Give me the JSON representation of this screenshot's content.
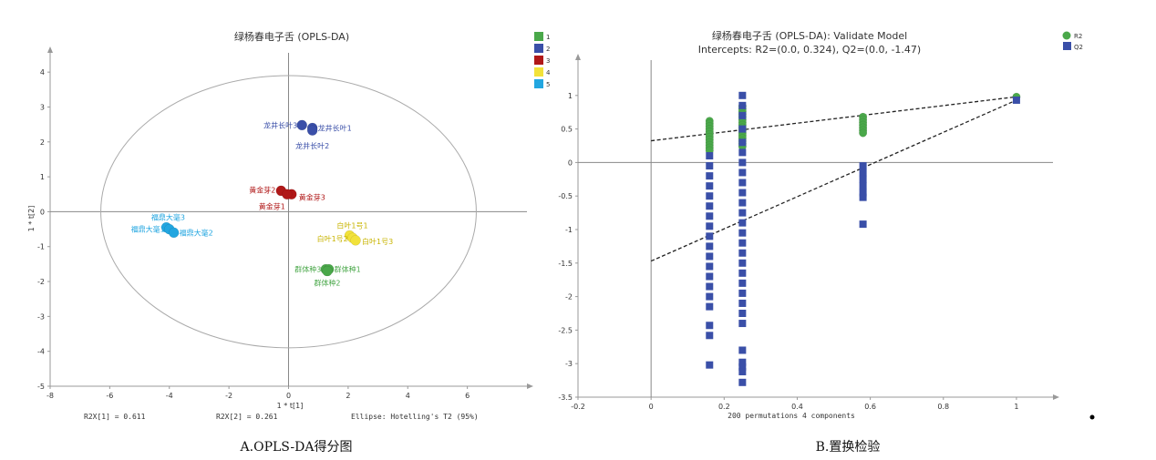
{
  "chart_data": [
    {
      "type": "scatter",
      "title": "绿杨春电子舌 (OPLS-DA)",
      "xlabel": "1 * t[1]",
      "ylabel": "1 * t[2]",
      "xlim": [
        -8,
        8
      ],
      "ylim": [
        -5,
        4.5
      ],
      "xticks": [
        -8,
        -6,
        -4,
        -2,
        0,
        2,
        4,
        6
      ],
      "yticks": [
        -5,
        -4,
        -3,
        -2,
        -1,
        0,
        1,
        2,
        3,
        4
      ],
      "legend": {
        "position": "top-right",
        "entries": [
          "1",
          "2",
          "3",
          "4",
          "5"
        ]
      },
      "colors": {
        "1": "#4aa84a",
        "2": "#3a4fa8",
        "3": "#b01818",
        "4": "#f2e23a",
        "5": "#22a6e0"
      },
      "series": [
        {
          "group": "1",
          "points": [
            {
              "label": "群体种3",
              "x": 1.25,
              "y": -1.65
            },
            {
              "label": "群体种1",
              "x": 1.35,
              "y": -1.65
            },
            {
              "label": "群体种2",
              "x": 1.3,
              "y": -1.7
            }
          ]
        },
        {
          "group": "2",
          "points": [
            {
              "label": "龙井长叶3",
              "x": 0.45,
              "y": 2.48
            },
            {
              "label": "龙井长叶1",
              "x": 0.8,
              "y": 2.4
            },
            {
              "label": "龙井长叶2",
              "x": 0.8,
              "y": 2.33
            }
          ]
        },
        {
          "group": "3",
          "points": [
            {
              "label": "黄金芽2",
              "x": -0.25,
              "y": 0.6
            },
            {
              "label": "黄金芽3",
              "x": 0.1,
              "y": 0.5
            },
            {
              "label": "黄金芽1",
              "x": -0.05,
              "y": 0.5
            }
          ]
        },
        {
          "group": "4",
          "points": [
            {
              "label": "白叶1号1",
              "x": 2.05,
              "y": -0.68
            },
            {
              "label": "白叶1号2",
              "x": 2.15,
              "y": -0.75
            },
            {
              "label": "白叶1号3",
              "x": 2.25,
              "y": -0.82
            }
          ]
        },
        {
          "group": "5",
          "points": [
            {
              "label": "福鼎大毫3",
              "x": -4.1,
              "y": -0.45
            },
            {
              "label": "福鼎大毫1",
              "x": -4.0,
              "y": -0.5
            },
            {
              "label": "福鼎大毫2",
              "x": -3.85,
              "y": -0.6
            }
          ]
        }
      ],
      "ellipse": {
        "cx": 0,
        "cy": 0,
        "rx": 6.3,
        "ry": 3.9
      },
      "footer": {
        "r2x1": "R2X[1] = 0.611",
        "r2x2": "R2X[2] = 0.261",
        "ellipse_note": "Ellipse: Hotelling's T2 (95%)"
      },
      "caption": "A.OPLS-DA得分图"
    },
    {
      "type": "scatter",
      "title": "绿杨春电子舌 (OPLS-DA): Validate Model",
      "subtitle": "Intercepts: R2=(0.0, 0.324), Q2=(0.0, -1.47)",
      "xlabel": "200 permutations 4 components",
      "xlim": [
        -0.2,
        1.1
      ],
      "ylim": [
        -3.5,
        1.5
      ],
      "xticks": [
        -0.2,
        0,
        0.2,
        0.4,
        0.6,
        0.8,
        1
      ],
      "yticks": [
        -3.5,
        -3,
        -2.5,
        -2,
        -1.5,
        -1,
        -0.5,
        0,
        0.5,
        1
      ],
      "legend": {
        "position": "top-right",
        "entries": [
          "R2",
          "Q2"
        ]
      },
      "colors": {
        "R2": "#4aa84a",
        "Q2": "#3a4fa8"
      },
      "series": [
        {
          "name": "R2",
          "points": [
            {
              "x": 0.16,
              "y": 0.62
            },
            {
              "x": 0.16,
              "y": 0.58
            },
            {
              "x": 0.16,
              "y": 0.54
            },
            {
              "x": 0.16,
              "y": 0.5
            },
            {
              "x": 0.16,
              "y": 0.46
            },
            {
              "x": 0.16,
              "y": 0.42
            },
            {
              "x": 0.16,
              "y": 0.38
            },
            {
              "x": 0.16,
              "y": 0.34
            },
            {
              "x": 0.16,
              "y": 0.3
            },
            {
              "x": 0.16,
              "y": 0.26
            },
            {
              "x": 0.16,
              "y": 0.22
            },
            {
              "x": 0.16,
              "y": 0.18
            },
            {
              "x": 0.25,
              "y": 0.84
            },
            {
              "x": 0.25,
              "y": 0.8
            },
            {
              "x": 0.25,
              "y": 0.76
            },
            {
              "x": 0.25,
              "y": 0.72
            },
            {
              "x": 0.25,
              "y": 0.68
            },
            {
              "x": 0.25,
              "y": 0.64
            },
            {
              "x": 0.25,
              "y": 0.6
            },
            {
              "x": 0.25,
              "y": 0.56
            },
            {
              "x": 0.25,
              "y": 0.52
            },
            {
              "x": 0.25,
              "y": 0.48
            },
            {
              "x": 0.25,
              "y": 0.44
            },
            {
              "x": 0.25,
              "y": 0.4
            },
            {
              "x": 0.25,
              "y": 0.36
            },
            {
              "x": 0.25,
              "y": 0.32
            },
            {
              "x": 0.25,
              "y": 0.28
            },
            {
              "x": 0.25,
              "y": 0.24
            },
            {
              "x": 0.58,
              "y": 0.68
            },
            {
              "x": 0.58,
              "y": 0.64
            },
            {
              "x": 0.58,
              "y": 0.6
            },
            {
              "x": 0.58,
              "y": 0.56
            },
            {
              "x": 0.58,
              "y": 0.52
            },
            {
              "x": 0.58,
              "y": 0.48
            },
            {
              "x": 0.58,
              "y": 0.44
            },
            {
              "x": 1,
              "y": 0.98
            }
          ]
        },
        {
          "name": "Q2",
          "points": [
            {
              "x": 0.16,
              "y": 0.1
            },
            {
              "x": 0.16,
              "y": -0.05
            },
            {
              "x": 0.16,
              "y": -0.2
            },
            {
              "x": 0.16,
              "y": -0.35
            },
            {
              "x": 0.16,
              "y": -0.5
            },
            {
              "x": 0.16,
              "y": -0.65
            },
            {
              "x": 0.16,
              "y": -0.8
            },
            {
              "x": 0.16,
              "y": -0.95
            },
            {
              "x": 0.16,
              "y": -1.1
            },
            {
              "x": 0.16,
              "y": -1.25
            },
            {
              "x": 0.16,
              "y": -1.4
            },
            {
              "x": 0.16,
              "y": -1.55
            },
            {
              "x": 0.16,
              "y": -1.7
            },
            {
              "x": 0.16,
              "y": -1.85
            },
            {
              "x": 0.16,
              "y": -2.0
            },
            {
              "x": 0.16,
              "y": -2.15
            },
            {
              "x": 0.16,
              "y": -2.43
            },
            {
              "x": 0.16,
              "y": -2.58
            },
            {
              "x": 0.16,
              "y": -3.02
            },
            {
              "x": 0.25,
              "y": 1.0
            },
            {
              "x": 0.25,
              "y": 0.85
            },
            {
              "x": 0.25,
              "y": 0.7
            },
            {
              "x": 0.25,
              "y": 0.5
            },
            {
              "x": 0.25,
              "y": 0.3
            },
            {
              "x": 0.25,
              "y": 0.15
            },
            {
              "x": 0.25,
              "y": 0.0
            },
            {
              "x": 0.25,
              "y": -0.15
            },
            {
              "x": 0.25,
              "y": -0.3
            },
            {
              "x": 0.25,
              "y": -0.45
            },
            {
              "x": 0.25,
              "y": -0.6
            },
            {
              "x": 0.25,
              "y": -0.75
            },
            {
              "x": 0.25,
              "y": -0.9
            },
            {
              "x": 0.25,
              "y": -1.05
            },
            {
              "x": 0.25,
              "y": -1.2
            },
            {
              "x": 0.25,
              "y": -1.35
            },
            {
              "x": 0.25,
              "y": -1.5
            },
            {
              "x": 0.25,
              "y": -1.65
            },
            {
              "x": 0.25,
              "y": -1.8
            },
            {
              "x": 0.25,
              "y": -1.95
            },
            {
              "x": 0.25,
              "y": -2.1
            },
            {
              "x": 0.25,
              "y": -2.25
            },
            {
              "x": 0.25,
              "y": -2.4
            },
            {
              "x": 0.25,
              "y": -2.8
            },
            {
              "x": 0.25,
              "y": -2.98
            },
            {
              "x": 0.25,
              "y": -3.05
            },
            {
              "x": 0.25,
              "y": -3.12
            },
            {
              "x": 0.25,
              "y": -3.28
            },
            {
              "x": 0.58,
              "y": -0.05
            },
            {
              "x": 0.58,
              "y": -0.15
            },
            {
              "x": 0.58,
              "y": -0.25
            },
            {
              "x": 0.58,
              "y": -0.35
            },
            {
              "x": 0.58,
              "y": -0.45
            },
            {
              "x": 0.58,
              "y": -0.52
            },
            {
              "x": 0.58,
              "y": -0.92
            },
            {
              "x": 1,
              "y": 0.93
            }
          ]
        }
      ],
      "regression_lines": [
        {
          "name": "R2",
          "x": [
            0,
            1
          ],
          "y": [
            0.324,
            0.98
          ]
        },
        {
          "name": "Q2",
          "x": [
            0,
            1
          ],
          "y": [
            -1.47,
            0.93
          ]
        }
      ],
      "caption": "B.置换检验"
    }
  ]
}
